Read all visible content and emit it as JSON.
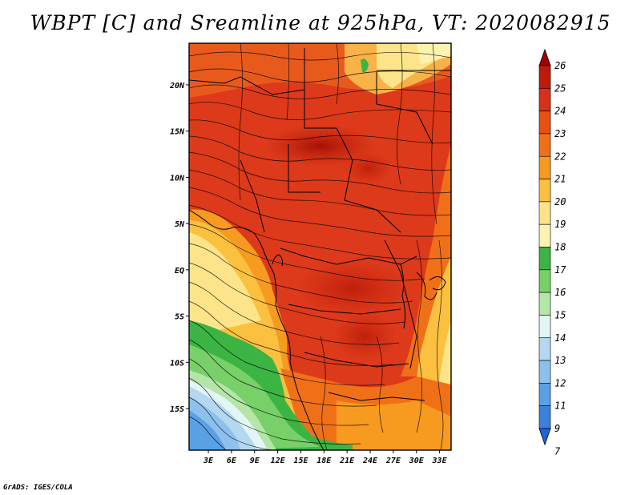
{
  "title": "WBPT [C] and Sreamline at 925hPa, VT: 2020082915",
  "footer": "GrADS: IGES/COLA",
  "map": {
    "lat_labels": [
      "20N",
      "15N",
      "10N",
      "5N",
      "EQ",
      "5S",
      "10S",
      "15S"
    ],
    "lat_values": [
      20,
      15,
      10,
      5,
      0,
      -5,
      -10,
      -15
    ],
    "lon_labels": [
      "3E",
      "6E",
      "9E",
      "12E",
      "15E",
      "18E",
      "21E",
      "24E",
      "27E",
      "30E",
      "33E"
    ],
    "lon_values": [
      3,
      6,
      9,
      12,
      15,
      18,
      21,
      24,
      27,
      30,
      33
    ],
    "extent": {
      "lon_min": 0.5,
      "lon_max": 34.5,
      "lat_min": -19.5,
      "lat_max": 24.5
    }
  },
  "colorbar": {
    "labels": [
      "26",
      "25",
      "24",
      "23",
      "22",
      "21",
      "20",
      "19",
      "18",
      "17",
      "16",
      "15",
      "14",
      "13",
      "12",
      "11",
      "9",
      "7"
    ],
    "colors": [
      "#a00000",
      "#c01a0c",
      "#d8301a",
      "#e85012",
      "#f07018",
      "#f79a20",
      "#fbc040",
      "#fde48a",
      "#fdf3b0",
      "#3cb444",
      "#78d068",
      "#b4e6a8",
      "#e2f6f6",
      "#b4d8f0",
      "#8ec0ec",
      "#5aa0e4",
      "#3c82dc",
      "#2064d8"
    ]
  }
}
